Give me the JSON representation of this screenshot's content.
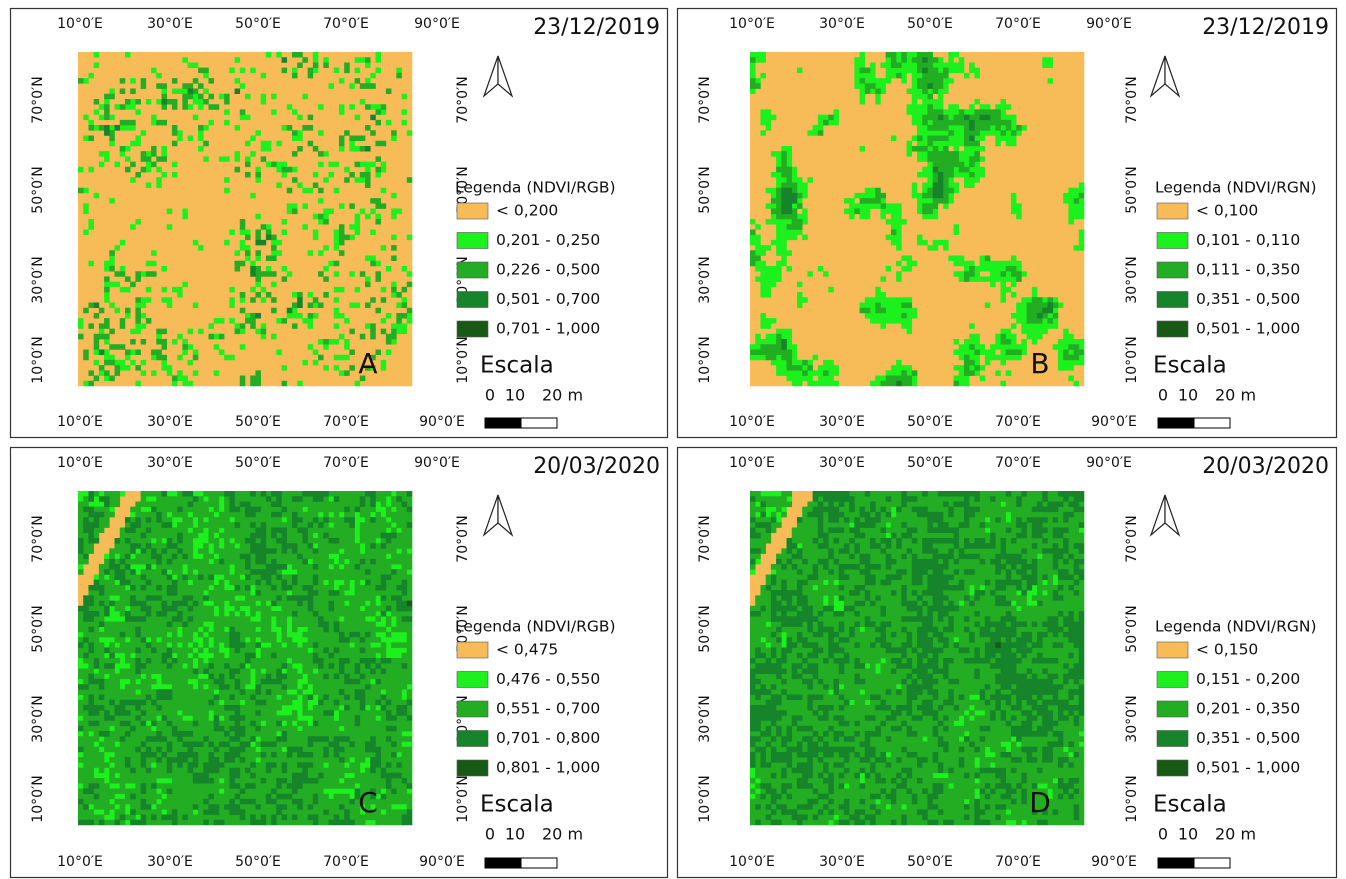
{
  "graticule": {
    "x": [
      "10°0′E",
      "30°0′E",
      "50°0′E",
      "70°0′E",
      "90°0′E"
    ],
    "y": [
      "70°0′N",
      "50°0′N",
      "30°0′N",
      "10°0′N"
    ]
  },
  "scale": {
    "title": "Escala",
    "labels": [
      "0",
      "10",
      "20 m"
    ]
  },
  "panels": [
    {
      "letter": "A",
      "date": "23/12/2019",
      "legend": {
        "title": "Legenda (NDVI/RGB)",
        "items": [
          {
            "label": "< 0,200",
            "color": "#F7BC58"
          },
          {
            "label": "0,201 - 0,250",
            "color": "#1DF11D"
          },
          {
            "label": "0,226 - 0,500",
            "color": "#22AD22"
          },
          {
            "label": "0,501 - 0,700",
            "color": "#16842A"
          },
          {
            "label": "0,701 - 1,000",
            "color": "#185A13"
          }
        ]
      }
    },
    {
      "letter": "B",
      "date": "23/12/2019",
      "legend": {
        "title": "Legenda (NDVI/RGN)",
        "items": [
          {
            "label": "< 0,100",
            "color": "#F7BC58"
          },
          {
            "label": "0,101 - 0,110",
            "color": "#1DF11D"
          },
          {
            "label": "0,111 - 0,350",
            "color": "#22AD22"
          },
          {
            "label": "0,351 - 0,500",
            "color": "#16842A"
          },
          {
            "label": "0,501 - 1,000",
            "color": "#185A13"
          }
        ]
      }
    },
    {
      "letter": "C",
      "date": "20/03/2020",
      "legend": {
        "title": "Legenda (NDVI/RGB)",
        "items": [
          {
            "label": "< 0,475",
            "color": "#F7BC58"
          },
          {
            "label": "0,476 - 0,550",
            "color": "#1DF11D"
          },
          {
            "label": "0,551 - 0,700",
            "color": "#22AD22"
          },
          {
            "label": "0,701 - 0,800",
            "color": "#16842A"
          },
          {
            "label": "0,801 - 1,000",
            "color": "#185A13"
          }
        ]
      }
    },
    {
      "letter": "D",
      "date": "20/03/2020",
      "legend": {
        "title": "Legenda (NDVI/RGN)",
        "items": [
          {
            "label": "< 0,150",
            "color": "#F7BC58"
          },
          {
            "label": "0,151 - 0,200",
            "color": "#1DF11D"
          },
          {
            "label": "0,201 - 0,350",
            "color": "#22AD22"
          },
          {
            "label": "0,351 - 0,500",
            "color": "#16842A"
          },
          {
            "label": "0,501 - 1,000",
            "color": "#185A13"
          }
        ]
      }
    }
  ]
}
